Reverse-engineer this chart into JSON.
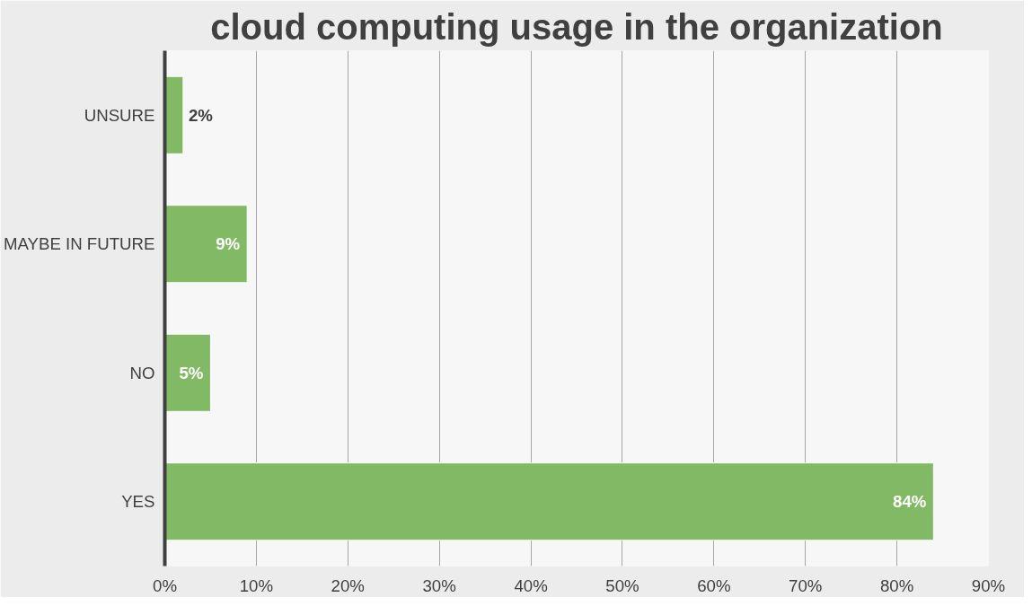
{
  "chart_data": {
    "type": "bar",
    "orientation": "horizontal",
    "title": "cloud computing usage in the organization",
    "categories": [
      "UNSURE",
      "MAYBE IN FUTURE",
      "NO",
      "YES"
    ],
    "values": [
      2,
      9,
      5,
      84
    ],
    "color": "#82b964",
    "value_labels": [
      "2%",
      "9%",
      "5%",
      "84%"
    ],
    "xlim": [
      0,
      90
    ],
    "xticks": [
      {
        "value": 0,
        "label": "0%"
      },
      {
        "value": 10,
        "label": "10%"
      },
      {
        "value": 20,
        "label": "20%"
      },
      {
        "value": 30,
        "label": "30%"
      },
      {
        "value": 40,
        "label": "40%"
      },
      {
        "value": 50,
        "label": "50%"
      },
      {
        "value": 60,
        "label": "60%"
      },
      {
        "value": 70,
        "label": "70%"
      },
      {
        "value": 80,
        "label": "80%"
      },
      {
        "value": 90,
        "label": "90%"
      }
    ],
    "grid": "x"
  }
}
